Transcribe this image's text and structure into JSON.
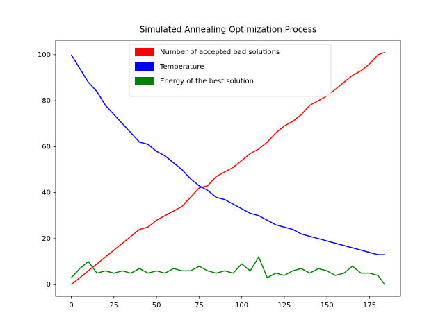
{
  "chart_data": {
    "type": "line",
    "title": "Simulated Annealing Optimization Process",
    "x": [
      0,
      5,
      10,
      15,
      20,
      25,
      30,
      35,
      40,
      45,
      50,
      55,
      60,
      65,
      70,
      75,
      80,
      85,
      90,
      95,
      100,
      105,
      110,
      115,
      120,
      125,
      130,
      135,
      140,
      145,
      150,
      155,
      160,
      165,
      170,
      175,
      180,
      184
    ],
    "series": [
      {
        "name": "Number of accepted bad solutions",
        "color": "#ff0000",
        "values": [
          0,
          3,
          6,
          9,
          12,
          15,
          18,
          21,
          24,
          25,
          28,
          30,
          32,
          34,
          38,
          42,
          43,
          47,
          49,
          51,
          54,
          57,
          59,
          62,
          66,
          69,
          71,
          74,
          78,
          80,
          82,
          85,
          88,
          91,
          93,
          96,
          100,
          101
        ]
      },
      {
        "name": "Temperature",
        "color": "#0000ff",
        "values": [
          100,
          94,
          88,
          84,
          78,
          74,
          70,
          66,
          62,
          61,
          58,
          56,
          53,
          50,
          46,
          43,
          41,
          38,
          37,
          35,
          33,
          31,
          30,
          28,
          26,
          25,
          24,
          22,
          21,
          20,
          19,
          18,
          17,
          16,
          15,
          14,
          13,
          13
        ]
      },
      {
        "name": "Energy of the best solution",
        "color": "#008000",
        "values": [
          3,
          7,
          10,
          5,
          6,
          5,
          6,
          5,
          7,
          5,
          6,
          5,
          7,
          6,
          6,
          8,
          6,
          5,
          6,
          5,
          9,
          6,
          12,
          3,
          5,
          4,
          6,
          7,
          5,
          7,
          6,
          4,
          5,
          8,
          5,
          5,
          4,
          0
        ]
      }
    ],
    "xlim": [
      -9.2,
      193.2
    ],
    "ylim": [
      -5.06,
      106.3
    ],
    "xticks": [
      0,
      25,
      50,
      75,
      100,
      125,
      150,
      175
    ],
    "yticks": [
      0,
      20,
      40,
      60,
      80,
      100
    ],
    "grid": false,
    "legend": "upper center"
  }
}
